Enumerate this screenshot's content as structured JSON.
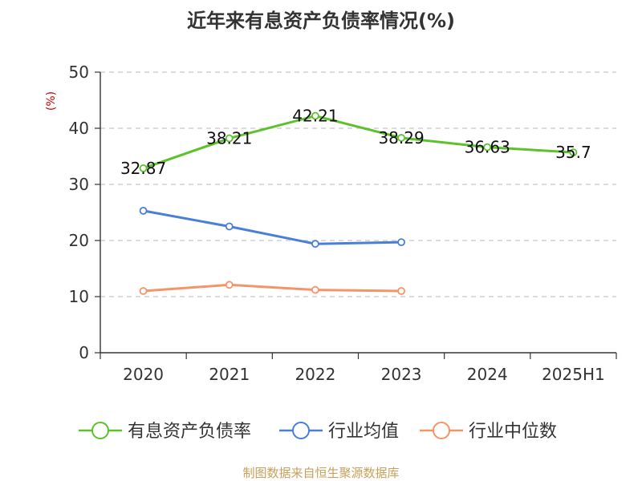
{
  "chart_data": {
    "type": "line",
    "title": "近年来有息资产负债率情况(%)",
    "ylabel": "(%)",
    "xlabel": "",
    "ylim": [
      0,
      50
    ],
    "yticks": [
      0,
      10,
      20,
      30,
      40,
      50
    ],
    "categories": [
      "2020",
      "2021",
      "2022",
      "2023",
      "2024",
      "2025H1"
    ],
    "grid": true,
    "legend_position": "bottom",
    "series": [
      {
        "name": "有息资产负债率",
        "color": "#5cc22b",
        "values": [
          32.87,
          38.21,
          42.21,
          38.29,
          36.63,
          35.7
        ],
        "labels": [
          "32.87",
          "38.21",
          "42.21",
          "38.29",
          "36.63",
          "35.7"
        ]
      },
      {
        "name": "行业均值",
        "color": "#4a7fd9",
        "values": [
          25.3,
          22.5,
          19.4,
          19.7,
          null,
          null
        ]
      },
      {
        "name": "行业中位数",
        "color": "#f59466",
        "values": [
          11.0,
          12.1,
          11.2,
          11.0,
          null,
          null
        ]
      }
    ]
  },
  "footer": {
    "source": "制图数据来自恒生聚源数据库"
  }
}
